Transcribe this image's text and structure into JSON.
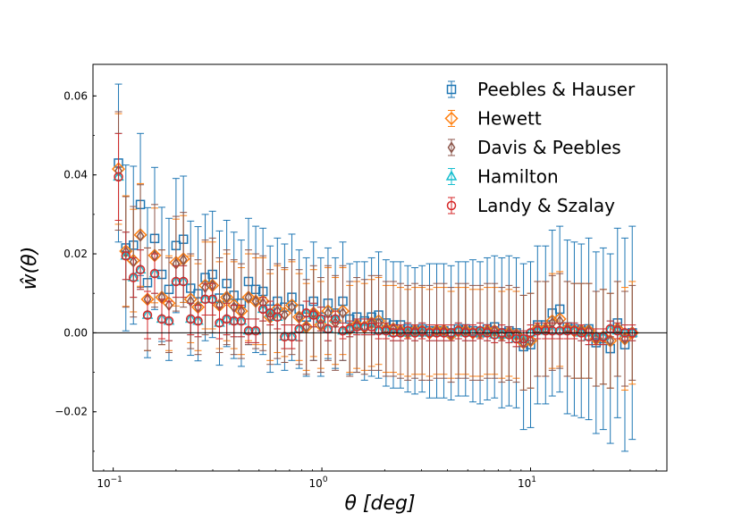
{
  "chart_data": {
    "type": "scatter",
    "title": "",
    "xlabel": "θ [deg]",
    "ylabel": "ŵ(θ)",
    "xscale": "log",
    "xlim": [
      0.08,
      45
    ],
    "ylim": [
      -0.035,
      0.068
    ],
    "x_ticks": [
      0.1,
      1,
      10
    ],
    "x_tick_labels": [
      {
        "base": "10",
        "exp": "−1"
      },
      {
        "base": "10",
        "exp": "0"
      },
      {
        "base": "10",
        "exp": "1"
      }
    ],
    "y_ticks": [
      -0.02,
      0.0,
      0.02,
      0.04,
      0.06
    ],
    "y_tick_labels": [
      "−0.02",
      "0.00",
      "0.02",
      "0.04",
      "0.06"
    ],
    "zero_line": true,
    "legend_position": "upper-right",
    "x": [
      0.106,
      0.115,
      0.125,
      0.135,
      0.146,
      0.158,
      0.171,
      0.185,
      0.2,
      0.217,
      0.235,
      0.255,
      0.276,
      0.299,
      0.323,
      0.35,
      0.379,
      0.411,
      0.445,
      0.482,
      0.522,
      0.565,
      0.612,
      0.663,
      0.718,
      0.778,
      0.842,
      0.912,
      0.988,
      1.07,
      1.16,
      1.26,
      1.36,
      1.47,
      1.6,
      1.73,
      1.87,
      2.03,
      2.2,
      2.38,
      2.58,
      2.79,
      3.02,
      3.28,
      3.55,
      3.84,
      4.16,
      4.51,
      4.88,
      5.29,
      5.73,
      6.2,
      6.72,
      7.28,
      7.88,
      8.54,
      9.25,
      10.0,
      10.8,
      11.8,
      12.7,
      13.8,
      15.0,
      16.2,
      17.5,
      19.0,
      20.6,
      22.3,
      24.1,
      26.1,
      28.3,
      30.7
    ],
    "series": [
      {
        "name": "Peebles & Hauser",
        "marker": "square",
        "color": "#1f77b4",
        "values": [
          0.043,
          0.0215,
          0.0222,
          0.0325,
          0.0127,
          0.0239,
          0.0148,
          0.011,
          0.0221,
          0.0237,
          0.0113,
          0.0099,
          0.014,
          0.0148,
          0.0088,
          0.0125,
          0.0095,
          0.0075,
          0.013,
          0.011,
          0.0105,
          0.006,
          0.008,
          0.0065,
          0.009,
          0.006,
          0.004,
          0.008,
          0.004,
          0.0075,
          0.005,
          0.008,
          0.0035,
          0.004,
          0.003,
          0.004,
          0.0045,
          0.0025,
          0.002,
          0.002,
          0.001,
          0.0005,
          0.001,
          0.0005,
          0.0005,
          0.0005,
          0.0,
          0.001,
          0.001,
          0.0005,
          0.0,
          0.001,
          0.0015,
          0.0,
          0.0005,
          0.0,
          -0.0035,
          -0.003,
          0.002,
          0.002,
          0.005,
          0.006,
          0.0015,
          0.001,
          0.0005,
          0.001,
          -0.0025,
          -0.0015,
          -0.004,
          0.0025,
          -0.003,
          0.0
        ],
        "err": [
          0.02,
          0.021,
          0.02,
          0.018,
          0.019,
          0.018,
          0.017,
          0.018,
          0.017,
          0.016,
          0.017,
          0.017,
          0.016,
          0.016,
          0.017,
          0.016,
          0.016,
          0.016,
          0.016,
          0.016,
          0.016,
          0.016,
          0.016,
          0.016,
          0.016,
          0.015,
          0.015,
          0.015,
          0.015,
          0.014,
          0.014,
          0.015,
          0.014,
          0.014,
          0.015,
          0.015,
          0.016,
          0.016,
          0.016,
          0.016,
          0.016,
          0.016,
          0.016,
          0.017,
          0.017,
          0.017,
          0.017,
          0.017,
          0.017,
          0.018,
          0.018,
          0.018,
          0.018,
          0.019,
          0.019,
          0.019,
          0.021,
          0.021,
          0.02,
          0.02,
          0.021,
          0.021,
          0.022,
          0.022,
          0.022,
          0.023,
          0.023,
          0.023,
          0.024,
          0.024,
          0.027,
          0.027
        ]
      },
      {
        "name": "Hewett",
        "marker": "diamond",
        "color": "#ff7f0e",
        "values": [
          0.0415,
          0.0207,
          0.0183,
          0.0248,
          0.0085,
          0.0196,
          0.009,
          0.0075,
          0.0178,
          0.0187,
          0.0085,
          0.0065,
          0.012,
          0.012,
          0.007,
          0.009,
          0.007,
          0.0055,
          0.009,
          0.008,
          0.008,
          0.004,
          0.006,
          0.005,
          0.007,
          0.004,
          0.0015,
          0.005,
          0.002,
          0.0055,
          0.003,
          0.0055,
          0.001,
          0.002,
          0.0015,
          0.0025,
          0.003,
          0.001,
          0.001,
          0.0005,
          0.0,
          0.0005,
          0.0005,
          0.0,
          0.0005,
          0.0005,
          -0.0005,
          0.0005,
          0.0005,
          0.0,
          0.0,
          0.0005,
          0.0005,
          -0.0005,
          0.0,
          -0.0005,
          -0.0025,
          -0.002,
          0.001,
          0.001,
          0.003,
          0.0035,
          0.001,
          0.0005,
          0.0005,
          0.0005,
          -0.0015,
          -0.001,
          -0.002,
          0.001,
          -0.0015,
          0.0
        ],
        "err": [
          0.014,
          0.014,
          0.013,
          0.013,
          0.013,
          0.012,
          0.012,
          0.012,
          0.011,
          0.011,
          0.011,
          0.011,
          0.011,
          0.011,
          0.011,
          0.011,
          0.011,
          0.011,
          0.011,
          0.011,
          0.011,
          0.011,
          0.011,
          0.011,
          0.011,
          0.011,
          0.011,
          0.011,
          0.011,
          0.011,
          0.011,
          0.011,
          0.011,
          0.011,
          0.011,
          0.011,
          0.011,
          0.011,
          0.011,
          0.011,
          0.011,
          0.011,
          0.011,
          0.011,
          0.011,
          0.011,
          0.011,
          0.011,
          0.011,
          0.011,
          0.011,
          0.011,
          0.011,
          0.011,
          0.011,
          0.011,
          0.012,
          0.012,
          0.012,
          0.012,
          0.012,
          0.012,
          0.012,
          0.012,
          0.012,
          0.012,
          0.012,
          0.012,
          0.012,
          0.012,
          0.013,
          0.013
        ]
      },
      {
        "name": "Davis & Peebles",
        "marker": "thin-diamond",
        "color": "#8c564b",
        "values": [
          0.041,
          0.0205,
          0.018,
          0.0245,
          0.0085,
          0.0195,
          0.009,
          0.007,
          0.0175,
          0.0185,
          0.008,
          0.0065,
          0.0115,
          0.012,
          0.007,
          0.009,
          0.0065,
          0.0055,
          0.009,
          0.008,
          0.0075,
          0.004,
          0.0055,
          0.0045,
          0.0065,
          0.004,
          0.0015,
          0.005,
          0.002,
          0.005,
          0.0025,
          0.005,
          0.001,
          0.002,
          0.0015,
          0.0025,
          0.0025,
          0.001,
          0.001,
          0.0005,
          0.0,
          0.0005,
          0.0,
          0.0,
          0.0005,
          0.0005,
          -0.0005,
          0.0005,
          0.0005,
          0.0,
          0.0,
          0.0005,
          0.0005,
          -0.0005,
          0.0,
          -0.0005,
          -0.0025,
          -0.002,
          0.001,
          0.001,
          0.0025,
          0.003,
          0.001,
          0.0005,
          0.0005,
          0.0005,
          -0.0015,
          -0.001,
          -0.002,
          0.001,
          -0.0015,
          0.0
        ],
        "err": [
          0.015,
          0.014,
          0.014,
          0.013,
          0.013,
          0.013,
          0.012,
          0.012,
          0.012,
          0.012,
          0.012,
          0.012,
          0.012,
          0.012,
          0.012,
          0.012,
          0.012,
          0.012,
          0.012,
          0.012,
          0.012,
          0.012,
          0.012,
          0.012,
          0.012,
          0.012,
          0.012,
          0.012,
          0.012,
          0.012,
          0.012,
          0.012,
          0.012,
          0.012,
          0.012,
          0.012,
          0.012,
          0.012,
          0.012,
          0.012,
          0.012,
          0.012,
          0.012,
          0.012,
          0.012,
          0.012,
          0.012,
          0.012,
          0.012,
          0.012,
          0.012,
          0.012,
          0.012,
          0.012,
          0.012,
          0.012,
          0.012,
          0.012,
          0.012,
          0.012,
          0.012,
          0.012,
          0.012,
          0.012,
          0.012,
          0.012,
          0.012,
          0.012,
          0.012,
          0.012,
          0.012,
          0.012
        ]
      },
      {
        "name": "Hamilton",
        "marker": "triangle",
        "color": "#17becf",
        "values": [
          0.0395,
          0.0195,
          0.014,
          0.016,
          0.0045,
          0.015,
          0.0035,
          0.003,
          0.013,
          0.013,
          0.0035,
          0.003,
          0.0085,
          0.0085,
          0.0025,
          0.0035,
          0.003,
          0.003,
          0.0005,
          0.0005,
          0.006,
          0.005,
          0.004,
          -0.001,
          -0.001,
          0.001,
          0.005,
          0.0045,
          0.0035,
          0.001,
          0.0035,
          0.0005,
          0.001,
          0.0015,
          0.0015,
          0.0015,
          0.0005,
          0.0005,
          0.0,
          0.0,
          0.0005,
          0.0,
          0.0005,
          0.0,
          0.0,
          0.0,
          0.0,
          0.0005,
          0.0,
          0.0,
          0.0005,
          0.0,
          -0.0005,
          0.0,
          -0.0005,
          -0.0015,
          -0.0015,
          0.0,
          0.0005,
          0.0005,
          0.0005,
          0.0005,
          0.0005,
          0.0005,
          0.0,
          -0.001,
          -0.001,
          -0.001,
          0.001,
          0.0005,
          0.0,
          0.0
        ],
        "err": [
          0.011,
          0.006,
          0.005,
          0.005,
          0.006,
          0.005,
          0.005,
          0.005,
          0.004,
          0.004,
          0.004,
          0.004,
          0.004,
          0.004,
          0.004,
          0.004,
          0.004,
          0.004,
          0.003,
          0.003,
          0.003,
          0.003,
          0.003,
          0.003,
          0.003,
          0.003,
          0.003,
          0.003,
          0.003,
          0.003,
          0.002,
          0.002,
          0.002,
          0.002,
          0.002,
          0.002,
          0.002,
          0.002,
          0.002,
          0.002,
          0.002,
          0.002,
          0.002,
          0.002,
          0.002,
          0.002,
          0.002,
          0.002,
          0.002,
          0.002,
          0.002,
          0.002,
          0.002,
          0.002,
          0.002,
          0.002,
          0.002,
          0.002,
          0.002,
          0.002,
          0.002,
          0.002,
          0.002,
          0.002,
          0.002,
          0.002,
          0.002,
          0.002,
          0.002,
          0.002,
          0.002,
          0.002
        ]
      },
      {
        "name": "Landy & Szalay",
        "marker": "circle",
        "color": "#d62728",
        "values": [
          0.0395,
          0.0195,
          0.014,
          0.016,
          0.0045,
          0.015,
          0.0035,
          0.003,
          0.013,
          0.013,
          0.0035,
          0.003,
          0.0085,
          0.0085,
          0.0025,
          0.0035,
          0.003,
          0.003,
          0.0005,
          0.0005,
          0.006,
          0.005,
          0.004,
          -0.001,
          -0.001,
          0.001,
          0.005,
          0.0045,
          0.0035,
          0.001,
          0.0035,
          0.0005,
          0.001,
          0.0015,
          0.0015,
          0.0015,
          0.0005,
          0.0005,
          0.0,
          0.0,
          0.0005,
          0.0,
          0.0005,
          0.0,
          0.0,
          0.0,
          0.0,
          0.0005,
          0.0,
          0.0,
          0.0005,
          0.0,
          -0.0005,
          0.0,
          -0.0005,
          -0.0015,
          -0.0015,
          0.0,
          0.0005,
          0.0005,
          0.0005,
          0.0005,
          0.0005,
          0.0005,
          0.0,
          -0.001,
          -0.001,
          -0.001,
          0.001,
          0.0005,
          0.0,
          0.0
        ],
        "err": [
          0.011,
          0.006,
          0.005,
          0.005,
          0.006,
          0.005,
          0.005,
          0.005,
          0.004,
          0.004,
          0.004,
          0.004,
          0.004,
          0.004,
          0.004,
          0.004,
          0.004,
          0.004,
          0.003,
          0.003,
          0.003,
          0.003,
          0.003,
          0.003,
          0.003,
          0.003,
          0.003,
          0.003,
          0.003,
          0.003,
          0.002,
          0.002,
          0.002,
          0.002,
          0.002,
          0.002,
          0.002,
          0.002,
          0.002,
          0.002,
          0.002,
          0.002,
          0.002,
          0.002,
          0.002,
          0.002,
          0.002,
          0.002,
          0.002,
          0.002,
          0.002,
          0.002,
          0.002,
          0.002,
          0.002,
          0.002,
          0.002,
          0.002,
          0.002,
          0.002,
          0.002,
          0.002,
          0.002,
          0.002,
          0.002,
          0.002,
          0.002,
          0.002,
          0.002,
          0.002,
          0.002,
          0.002
        ]
      }
    ]
  }
}
